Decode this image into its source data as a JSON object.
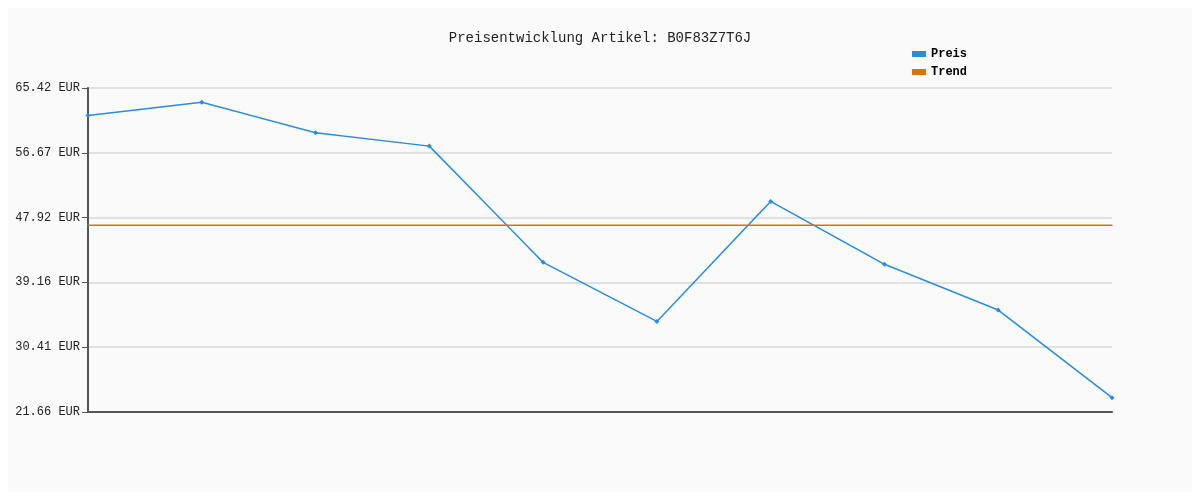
{
  "chart_data": {
    "type": "line",
    "title": "Preisentwicklung Artikel: B0F83Z7T6J",
    "categories": [
      null,
      null,
      null,
      null,
      null,
      null,
      null,
      null,
      null,
      null
    ],
    "series": [
      {
        "name": "Preis",
        "color": "#2e8bd6",
        "marker": "diamond",
        "values": [
          61.69,
          63.49,
          59.37,
          57.57,
          41.87,
          33.89,
          50.1,
          41.61,
          35.43,
          23.59
        ]
      },
      {
        "name": "Trend",
        "color": "#d9730d",
        "marker": "none",
        "values": [
          46.89,
          46.89,
          46.89,
          46.89,
          46.89,
          46.89,
          46.89,
          46.89,
          46.89,
          46.89
        ]
      }
    ],
    "ylim": [
      21.66,
      65.42
    ],
    "yticks": [
      {
        "value": 21.66,
        "label": "21.66 EUR"
      },
      {
        "value": 30.41,
        "label": "30.41 EUR"
      },
      {
        "value": 39.16,
        "label": "39.16 EUR"
      },
      {
        "value": 47.92,
        "label": "47.92 EUR"
      },
      {
        "value": 56.67,
        "label": "56.67 EUR"
      },
      {
        "value": 65.42,
        "label": "65.42 EUR"
      }
    ],
    "grid": "y",
    "legend": "top right",
    "line_style": "solid"
  }
}
